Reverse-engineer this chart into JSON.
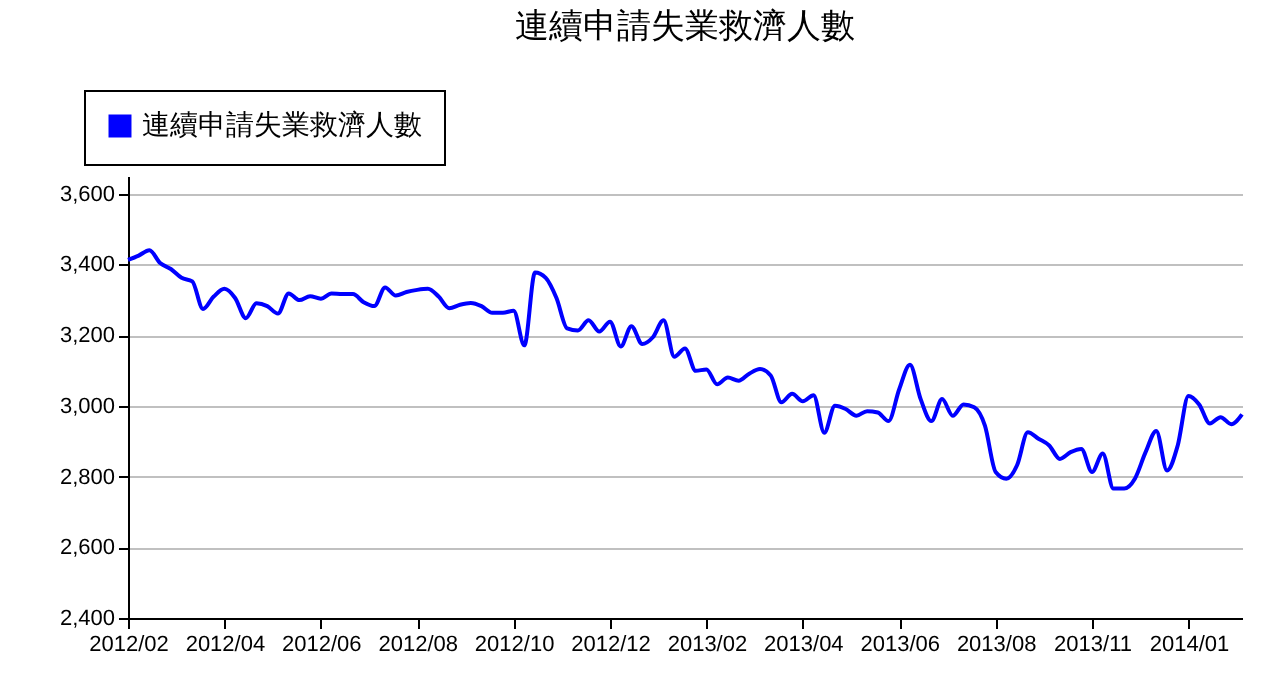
{
  "chart_data": {
    "type": "line",
    "title": "連續申請失業救濟人數",
    "categories": [
      "2012/02",
      null,
      null,
      null,
      null,
      null,
      null,
      null,
      null,
      "2012/04",
      null,
      null,
      null,
      null,
      null,
      null,
      null,
      null,
      "2012/06",
      null,
      null,
      null,
      null,
      null,
      null,
      null,
      null,
      "2012/08",
      null,
      null,
      null,
      null,
      null,
      null,
      null,
      null,
      "2012/10",
      null,
      null,
      null,
      null,
      null,
      null,
      null,
      null,
      "2012/12",
      null,
      null,
      null,
      null,
      null,
      null,
      null,
      null,
      "2013/02",
      null,
      null,
      null,
      null,
      null,
      null,
      null,
      null,
      "2013/04",
      null,
      null,
      null,
      null,
      null,
      null,
      null,
      null,
      "2013/06",
      null,
      null,
      null,
      null,
      null,
      null,
      null,
      null,
      "2013/08",
      null,
      null,
      null,
      null,
      null,
      null,
      null,
      null,
      "2013/11",
      null,
      null,
      null,
      null,
      null,
      null,
      null,
      null,
      "2014/01",
      null,
      null,
      null,
      null,
      null
    ],
    "series": [
      {
        "name": "連續申請失業救濟人數",
        "color": "#0000ff",
        "values": [
          3413,
          3425,
          3440,
          3404,
          3387,
          3362,
          3352,
          3274,
          3309,
          3331,
          3305,
          3248,
          3290,
          3282,
          3261,
          3318,
          3299,
          3310,
          3303,
          3318,
          3316,
          3316,
          3293,
          3282,
          3335,
          3312,
          3322,
          3328,
          3331,
          3309,
          3276,
          3286,
          3291,
          3282,
          3263,
          3263,
          3269,
          3171,
          3377,
          3362,
          3305,
          3219,
          3213,
          3242,
          3210,
          3238,
          3168,
          3225,
          3175,
          3194,
          3242,
          3139,
          3162,
          3099,
          3103,
          3061,
          3080,
          3071,
          3091,
          3104,
          3086,
          3010,
          3034,
          3013,
          3030,
          2924,
          3000,
          2991,
          2972,
          2985,
          2981,
          2957,
          3047,
          3116,
          3019,
          2957,
          3019,
          2972,
          3004,
          2996,
          2944,
          2813,
          2794,
          2832,
          2925,
          2907,
          2888,
          2850,
          2869,
          2878,
          2813,
          2865,
          2766,
          2766,
          2794,
          2869,
          2929,
          2817,
          2888,
          3028,
          3004,
          2950,
          2968,
          2948,
          2976
        ]
      }
    ],
    "ylim": [
      2400,
      3650
    ],
    "yticks": [
      {
        "value": 2400,
        "label": "2,400"
      },
      {
        "value": 2600,
        "label": "2,600"
      },
      {
        "value": 2800,
        "label": "2,800"
      },
      {
        "value": 3000,
        "label": "3,000"
      },
      {
        "value": 3200,
        "label": "3,200"
      },
      {
        "value": 3400,
        "label": "3,400"
      },
      {
        "value": 3600,
        "label": "3,600"
      }
    ],
    "grid": "y",
    "legend": "top left",
    "marker": "none",
    "line_style": "solid"
  }
}
